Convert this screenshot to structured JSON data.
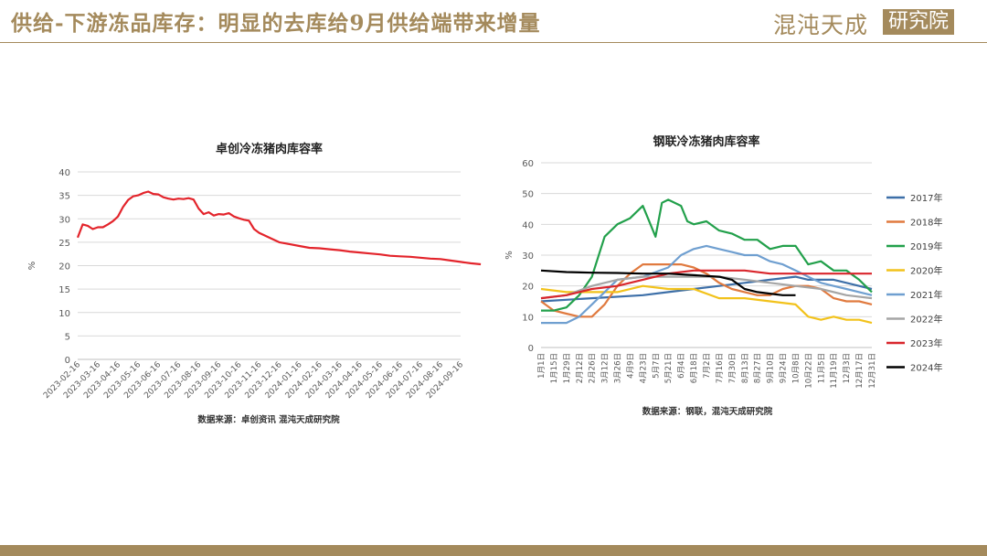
{
  "header": {
    "title": "供给-下游冻品库存：明显的去库给9月供给端带来增量",
    "logo_text": "混沌天成",
    "logo_box": "研究院"
  },
  "colors": {
    "gold": "#a48a5c"
  },
  "chart_data": [
    {
      "type": "line",
      "title": "卓创冷冻猪肉库容率",
      "ylabel": "%",
      "xlabel": "",
      "ylim": [
        0,
        40
      ],
      "yticks": [
        0,
        5,
        10,
        15,
        20,
        25,
        30,
        35,
        40
      ],
      "grid": true,
      "source": "数据来源：卓创资讯 混沌天成研究院",
      "x_tick_labels": [
        "2023-02-16",
        "2023-03-16",
        "2023-04-16",
        "2023-05-16",
        "2023-06-16",
        "2023-07-16",
        "2023-08-16",
        "2023-09-16",
        "2023-10-16",
        "2023-11-16",
        "2023-12-16",
        "2024-01-16",
        "2024-02-16",
        "2024-03-16",
        "2024-04-16",
        "2024-05-16",
        "2024-06-16",
        "2024-07-16",
        "2024-08-16",
        "2024-09-16"
      ],
      "series": [
        {
          "color": "#e3242b",
          "x": [
            0,
            0.25,
            0.5,
            0.75,
            1,
            1.25,
            1.5,
            1.75,
            2,
            2.25,
            2.5,
            2.75,
            3,
            3.25,
            3.5,
            3.75,
            4,
            4.25,
            4.5,
            4.75,
            5,
            5.25,
            5.5,
            5.75,
            6,
            6.25,
            6.5,
            6.75,
            7,
            7.25,
            7.5,
            7.75,
            8,
            8.25,
            8.5,
            8.75,
            9,
            9.5,
            10,
            10.5,
            11,
            11.5,
            12,
            12.5,
            13,
            13.5,
            14,
            14.5,
            15,
            15.5,
            16,
            16.5,
            17,
            17.5,
            18,
            18.5,
            19,
            19.5,
            20
          ],
          "y": [
            26.0,
            28.8,
            28.5,
            27.8,
            28.2,
            28.2,
            28.8,
            29.5,
            30.5,
            32.5,
            34.0,
            34.8,
            35.0,
            35.5,
            35.8,
            35.3,
            35.2,
            34.6,
            34.3,
            34.1,
            34.3,
            34.2,
            34.4,
            34.1,
            32.2,
            31.0,
            31.4,
            30.7,
            31.0,
            30.9,
            31.2,
            30.5,
            30.1,
            29.8,
            29.6,
            27.8,
            27.0,
            26.0,
            25.0,
            24.6,
            24.2,
            23.8,
            23.7,
            23.5,
            23.3,
            23.0,
            22.8,
            22.6,
            22.4,
            22.1,
            22.0,
            21.9,
            21.7,
            21.5,
            21.4,
            21.1,
            20.8,
            20.5,
            20.3
          ]
        }
      ]
    },
    {
      "type": "line",
      "title": "钢联冷冻猪肉库容率",
      "ylabel": "%",
      "xlabel": "",
      "ylim": [
        0,
        60
      ],
      "yticks": [
        0,
        10,
        20,
        30,
        40,
        50,
        60
      ],
      "grid": true,
      "legend_position": "right",
      "source": "数据来源：钢联，混沌天成研究院",
      "x_tick_labels": [
        "1月1日",
        "1月15日",
        "1月29日",
        "2月12日",
        "2月26日",
        "3月12日",
        "3月26日",
        "4月9日",
        "4月23日",
        "5月7日",
        "5月21日",
        "6月4日",
        "6月18日",
        "7月2日",
        "7月16日",
        "7月30日",
        "8月13日",
        "8月27日",
        "9月10日",
        "9月24日",
        "10月8日",
        "10月22日",
        "11月5日",
        "11月19日",
        "12月3日",
        "12月17日",
        "12月31日"
      ],
      "series": [
        {
          "name": "2017年",
          "color": "#3d6fa8",
          "x": [
            0,
            4,
            8,
            10,
            12,
            14,
            16,
            18,
            20,
            21,
            22,
            23,
            24,
            25,
            26
          ],
          "y": [
            15,
            16,
            17,
            18,
            19,
            20,
            21,
            22,
            23,
            22,
            22,
            22,
            21,
            20,
            19
          ]
        },
        {
          "name": "2018年",
          "color": "#e07a3f",
          "x": [
            0,
            1,
            2,
            3,
            4,
            5,
            6,
            7,
            8,
            9,
            10,
            11,
            12,
            13,
            14,
            15,
            16,
            17,
            18,
            19,
            20,
            21,
            22,
            23,
            24,
            25,
            26
          ],
          "y": [
            15,
            12,
            11,
            10,
            10,
            14,
            20,
            24,
            27,
            27,
            27,
            27,
            26,
            24,
            21,
            19,
            18,
            17,
            17,
            19,
            20,
            20,
            19,
            16,
            15,
            15,
            14
          ]
        },
        {
          "name": "2019年",
          "color": "#22a04b",
          "x": [
            0,
            1,
            2,
            3,
            4,
            5,
            6,
            7,
            8,
            9,
            9.5,
            10,
            11,
            11.5,
            12,
            13,
            14,
            15,
            16,
            17,
            18,
            19,
            20,
            21,
            22,
            23,
            24,
            25,
            26
          ],
          "y": [
            12,
            12,
            13,
            17,
            23,
            36,
            40,
            42,
            46,
            36,
            47,
            48,
            46,
            41,
            40,
            41,
            38,
            37,
            35,
            35,
            32,
            33,
            33,
            27,
            28,
            25,
            25,
            22,
            18
          ]
        },
        {
          "name": "2020年",
          "color": "#f2c21b",
          "x": [
            0,
            2,
            4,
            6,
            8,
            10,
            12,
            14,
            16,
            18,
            20,
            21,
            22,
            23,
            24,
            25,
            26
          ],
          "y": [
            19,
            18,
            18,
            18,
            20,
            19,
            19,
            16,
            16,
            15,
            14,
            10,
            9,
            10,
            9,
            9,
            8
          ]
        },
        {
          "name": "2021年",
          "color": "#6f9fd0",
          "x": [
            0,
            2,
            3,
            4,
            6,
            8,
            10,
            11,
            12,
            13,
            14,
            15,
            16,
            17,
            18,
            19,
            20,
            21,
            22,
            23,
            24,
            25,
            26
          ],
          "y": [
            8,
            8,
            10,
            14,
            22,
            23,
            26,
            30,
            32,
            33,
            32,
            31,
            30,
            30,
            28,
            27,
            25,
            23,
            21,
            20,
            19,
            18,
            17
          ]
        },
        {
          "name": "2022年",
          "color": "#a5a5a5",
          "x": [
            0,
            2,
            4,
            6,
            8,
            10,
            12,
            14,
            16,
            18,
            20,
            22,
            24,
            26
          ],
          "y": [
            16,
            17,
            20,
            22,
            23,
            23,
            23,
            23,
            22,
            21,
            20,
            19,
            17,
            16
          ]
        },
        {
          "name": "2023年",
          "color": "#d9262c",
          "x": [
            0,
            2,
            4,
            6,
            8,
            10,
            12,
            14,
            16,
            18,
            20,
            22,
            24,
            26
          ],
          "y": [
            16,
            17,
            19,
            20,
            22,
            24,
            25,
            25,
            25,
            24,
            24,
            24,
            24,
            24
          ]
        },
        {
          "name": "2024年",
          "color": "#000000",
          "x": [
            0,
            2,
            4,
            6,
            8,
            10,
            12,
            14,
            15,
            16,
            17,
            18,
            19,
            20
          ],
          "y": [
            25,
            24.5,
            24.3,
            24.2,
            24,
            24,
            23.5,
            23,
            22,
            19,
            18,
            17.5,
            17,
            17
          ]
        }
      ]
    }
  ]
}
